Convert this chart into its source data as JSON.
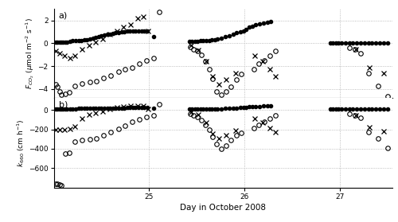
{
  "title_a": "a)",
  "title_b": "b)",
  "xlabel": "Day in October 2008",
  "ylabel_a": "F$_{CO_2}$ (μmol m⁻² s⁻¹)",
  "ylabel_b": "k$_{660}$ (cm h⁻¹)",
  "xlim": [
    24.0,
    27.55
  ],
  "ylim_a": [
    -4.8,
    3.0
  ],
  "ylim_b": [
    -800,
    120
  ],
  "xticks": [
    25,
    26,
    27
  ],
  "yticks_a": [
    -4,
    -2,
    0,
    2
  ],
  "yticks_b": [
    -600,
    -400,
    -200,
    0
  ],
  "panel_a": {
    "open_circles_x": [
      24.02,
      24.04,
      24.06,
      24.08,
      24.12,
      24.16,
      24.22,
      24.3,
      24.38,
      24.45,
      24.52,
      24.6,
      24.68,
      24.75,
      24.82,
      24.9,
      24.97,
      25.05,
      25.11,
      25.43,
      25.47,
      25.51,
      25.55,
      25.59,
      25.63,
      25.67,
      25.71,
      25.76,
      25.81,
      25.86,
      25.92,
      25.97,
      26.1,
      26.15,
      26.21,
      26.27,
      26.33,
      27.1,
      27.16,
      27.22,
      27.3,
      27.4,
      27.5
    ],
    "open_circles_y": [
      -3.6,
      -3.8,
      -4.2,
      -4.5,
      -4.4,
      -4.3,
      -3.7,
      -3.5,
      -3.4,
      -3.3,
      -3.0,
      -2.8,
      -2.5,
      -2.3,
      -2.1,
      -1.8,
      -1.5,
      -1.3,
      2.7,
      -0.3,
      -0.5,
      -0.7,
      -1.0,
      -1.6,
      -2.3,
      -3.1,
      -4.2,
      -4.5,
      -4.2,
      -3.8,
      -3.2,
      -2.7,
      -2.3,
      -1.8,
      -1.5,
      -1.1,
      -0.7,
      -0.4,
      -0.5,
      -0.9,
      -2.6,
      -3.7,
      -4.6
    ],
    "crosses_x": [
      24.02,
      24.06,
      24.11,
      24.17,
      24.22,
      24.3,
      24.37,
      24.44,
      24.51,
      24.59,
      24.66,
      24.73,
      24.81,
      24.88,
      24.94,
      24.99,
      25.44,
      25.52,
      25.6,
      25.67,
      25.73,
      25.81,
      25.91,
      26.11,
      26.19,
      26.27,
      26.33,
      27.17,
      27.31,
      27.46
    ],
    "crosses_y": [
      -0.7,
      -0.9,
      -1.1,
      -1.3,
      -1.1,
      -0.5,
      -0.2,
      0.1,
      0.4,
      0.8,
      1.1,
      1.4,
      1.6,
      2.2,
      2.3,
      1.1,
      -0.2,
      -0.6,
      -1.6,
      -2.9,
      -3.6,
      -3.2,
      -2.6,
      -1.1,
      -1.6,
      -2.3,
      -2.9,
      -0.5,
      -2.1,
      -2.6
    ],
    "filled_circles_x": [
      24.02,
      24.04,
      24.06,
      24.08,
      24.1,
      24.12,
      24.14,
      24.17,
      24.2,
      24.23,
      24.26,
      24.29,
      24.32,
      24.35,
      24.38,
      24.41,
      24.44,
      24.47,
      24.5,
      24.53,
      24.56,
      24.59,
      24.62,
      24.65,
      24.68,
      24.71,
      24.74,
      24.77,
      24.8,
      24.83,
      24.86,
      24.89,
      24.92,
      24.95,
      24.98,
      25.05,
      25.42,
      25.45,
      25.48,
      25.51,
      25.54,
      25.57,
      25.6,
      25.63,
      25.66,
      25.69,
      25.72,
      25.76,
      25.8,
      25.84,
      25.88,
      25.92,
      25.96,
      25.99,
      26.02,
      26.05,
      26.08,
      26.12,
      26.16,
      26.2,
      26.24,
      26.28,
      26.9,
      26.93,
      26.96,
      26.99,
      27.02,
      27.06,
      27.1,
      27.14,
      27.18,
      27.22,
      27.26,
      27.3,
      27.34,
      27.38,
      27.42,
      27.46,
      27.5
    ],
    "filled_circles_y": [
      0.1,
      0.1,
      0.1,
      0.1,
      0.1,
      0.12,
      0.12,
      0.15,
      0.2,
      0.2,
      0.22,
      0.25,
      0.28,
      0.32,
      0.38,
      0.44,
      0.52,
      0.6,
      0.65,
      0.7,
      0.76,
      0.82,
      0.88,
      0.92,
      0.96,
      1.0,
      1.02,
      1.05,
      1.08,
      1.1,
      1.1,
      1.1,
      1.1,
      1.1,
      1.1,
      0.6,
      0.15,
      0.15,
      0.15,
      0.15,
      0.2,
      0.2,
      0.22,
      0.25,
      0.28,
      0.32,
      0.38,
      0.45,
      0.55,
      0.65,
      0.78,
      0.9,
      1.0,
      1.1,
      1.2,
      1.4,
      1.5,
      1.6,
      1.7,
      1.75,
      1.82,
      1.9,
      0.05,
      0.05,
      0.05,
      0.05,
      0.05,
      0.05,
      0.05,
      0.05,
      0.05,
      0.05,
      0.05,
      0.05,
      0.05,
      0.05,
      0.05,
      0.05,
      0.05
    ]
  },
  "panel_b": {
    "open_circles_x": [
      24.02,
      24.04,
      24.06,
      24.08,
      24.12,
      24.16,
      24.22,
      24.3,
      24.38,
      24.45,
      24.52,
      24.6,
      24.68,
      24.75,
      24.82,
      24.9,
      24.97,
      25.05,
      25.11,
      25.43,
      25.47,
      25.51,
      25.55,
      25.59,
      25.63,
      25.67,
      25.71,
      25.76,
      25.81,
      25.86,
      25.92,
      25.97,
      26.1,
      26.15,
      26.21,
      26.27,
      26.33,
      27.1,
      27.16,
      27.22,
      27.3,
      27.4,
      27.5
    ],
    "open_circles_y": [
      -760,
      -760,
      -770,
      -780,
      -450,
      -440,
      -330,
      -310,
      -300,
      -290,
      -265,
      -230,
      -195,
      -160,
      -125,
      -95,
      -72,
      -58,
      58,
      -42,
      -58,
      -75,
      -105,
      -155,
      -205,
      -280,
      -355,
      -400,
      -370,
      -310,
      -265,
      -235,
      -185,
      -158,
      -118,
      -90,
      -58,
      -38,
      -58,
      -78,
      -230,
      -295,
      -390
    ],
    "crosses_x": [
      24.02,
      24.06,
      24.11,
      24.17,
      24.22,
      24.3,
      24.37,
      24.44,
      24.51,
      24.59,
      24.66,
      24.73,
      24.81,
      24.88,
      24.94,
      24.99,
      25.44,
      25.52,
      25.6,
      25.67,
      25.73,
      25.81,
      25.91,
      26.11,
      26.19,
      26.27,
      26.33,
      27.17,
      27.31,
      27.46
    ],
    "crosses_y": [
      -200,
      -205,
      -200,
      -195,
      -168,
      -92,
      -52,
      -28,
      -18,
      12,
      25,
      35,
      38,
      45,
      38,
      12,
      -22,
      -50,
      -130,
      -242,
      -295,
      -265,
      -215,
      -92,
      -132,
      -185,
      -225,
      -58,
      -178,
      -218
    ],
    "filled_circles_x": [
      24.02,
      24.04,
      24.06,
      24.08,
      24.1,
      24.12,
      24.14,
      24.17,
      24.2,
      24.23,
      24.26,
      24.29,
      24.32,
      24.35,
      24.38,
      24.41,
      24.44,
      24.47,
      24.5,
      24.53,
      24.56,
      24.59,
      24.62,
      24.65,
      24.68,
      24.71,
      24.74,
      24.77,
      24.8,
      24.83,
      24.86,
      24.89,
      24.92,
      24.95,
      24.98,
      25.05,
      25.42,
      25.45,
      25.48,
      25.51,
      25.54,
      25.57,
      25.6,
      25.63,
      25.66,
      25.69,
      25.72,
      25.76,
      25.8,
      25.84,
      25.88,
      25.92,
      25.96,
      25.99,
      26.02,
      26.05,
      26.08,
      26.12,
      26.16,
      26.2,
      26.24,
      26.28,
      26.9,
      26.93,
      26.96,
      26.99,
      27.02,
      27.06,
      27.1,
      27.14,
      27.18,
      27.22,
      27.26,
      27.3,
      27.34,
      27.38,
      27.42,
      27.46,
      27.5
    ],
    "filled_circles_y": [
      12,
      12,
      12,
      12,
      12,
      13,
      13,
      13,
      13,
      13,
      14,
      14,
      14,
      14,
      15,
      15,
      16,
      16,
      16,
      17,
      17,
      18,
      18,
      20,
      20,
      20,
      21,
      22,
      22,
      23,
      23,
      24,
      24,
      25,
      25,
      16,
      10,
      10,
      10,
      10,
      10,
      10,
      10,
      10,
      10,
      10,
      12,
      13,
      14,
      15,
      17,
      20,
      23,
      25,
      28,
      30,
      32,
      35,
      37,
      38,
      40,
      42,
      6,
      6,
      6,
      6,
      6,
      6,
      6,
      6,
      6,
      6,
      6,
      6,
      6,
      6,
      6,
      6,
      6
    ]
  },
  "background_color": "#ffffff",
  "grid_color": "#aaaaaa",
  "grid_style": "dotted",
  "marker_size_filled": 3,
  "marker_size_open": 4,
  "marker_size_cross": 4,
  "marker_ew": 0.8
}
